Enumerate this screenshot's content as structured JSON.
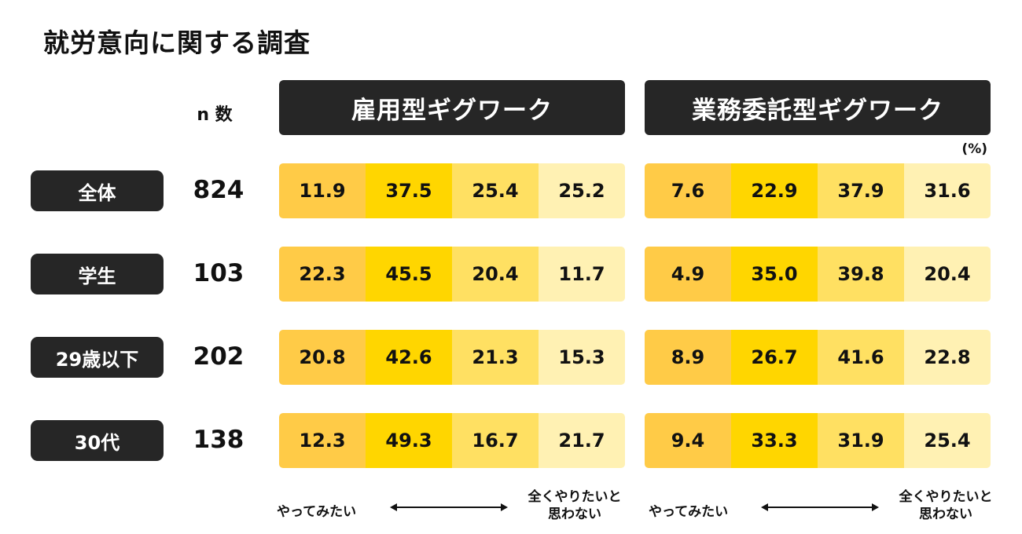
{
  "title": "就労意向に関する調査",
  "n_header": "n 数",
  "unit": "(%)",
  "colors": {
    "header_bg": "#262626",
    "seg1": "#FFCB47",
    "seg2": "#FFD600",
    "seg3": "#FFE062",
    "seg4": "#FFF1B3"
  },
  "scale": {
    "left_label": "やってみたい",
    "right_label_line1": "全くやりたいと",
    "right_label_line2": "思わない"
  },
  "chart_data": {
    "type": "table",
    "title": "就労意向に関する調査",
    "categories": [
      "全体",
      "学生",
      "29歳以下",
      "30代"
    ],
    "n": [
      "824",
      "103",
      "202",
      "138"
    ],
    "panels": [
      {
        "name": "雇用型ギグワーク",
        "values": [
          [
            11.9,
            37.5,
            25.4,
            25.2
          ],
          [
            22.3,
            45.5,
            20.4,
            11.7
          ],
          [
            20.8,
            42.6,
            21.3,
            15.3
          ],
          [
            12.3,
            49.3,
            16.7,
            21.7
          ]
        ],
        "labels": [
          [
            "11.9",
            "37.5",
            "25.4",
            "25.2"
          ],
          [
            "22.3",
            "45.5",
            "20.4",
            "11.7"
          ],
          [
            "20.8",
            "42.6",
            "21.3",
            "15.3"
          ],
          [
            "12.3",
            "49.3",
            "16.7",
            "21.7"
          ]
        ]
      },
      {
        "name": "業務委託型ギグワーク",
        "values": [
          [
            7.6,
            22.9,
            37.9,
            31.6
          ],
          [
            4.9,
            35.0,
            39.8,
            20.4
          ],
          [
            8.9,
            26.7,
            41.6,
            22.8
          ],
          [
            9.4,
            33.3,
            31.9,
            25.4
          ]
        ],
        "labels": [
          [
            "7.6",
            "22.9",
            "37.9",
            "31.6"
          ],
          [
            "4.9",
            "35.0",
            "39.8",
            "20.4"
          ],
          [
            "8.9",
            "26.7",
            "41.6",
            "22.8"
          ],
          [
            "9.4",
            "33.3",
            "31.9",
            "25.4"
          ]
        ]
      }
    ]
  }
}
